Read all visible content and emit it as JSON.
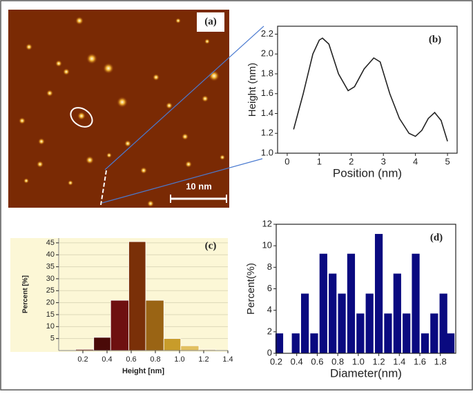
{
  "chart_data": [
    {
      "type": "image",
      "label": "(a)",
      "scale_bar": "10 nm"
    },
    {
      "type": "line",
      "label": "(b)",
      "xlabel": "Position (nm)",
      "ylabel": "Height (nm)",
      "x": [
        0.2,
        0.5,
        0.8,
        1.0,
        1.1,
        1.3,
        1.6,
        1.9,
        2.1,
        2.4,
        2.7,
        2.9,
        3.2,
        3.5,
        3.8,
        4.0,
        4.2,
        4.4,
        4.6,
        4.8,
        5.0
      ],
      "series": [
        {
          "color": "#222222",
          "values": [
            1.24,
            1.6,
            2.0,
            2.14,
            2.16,
            2.1,
            1.8,
            1.63,
            1.67,
            1.85,
            1.96,
            1.92,
            1.6,
            1.35,
            1.2,
            1.17,
            1.23,
            1.35,
            1.41,
            1.33,
            1.12
          ]
        }
      ],
      "xlim": [
        -0.3,
        5.3
      ],
      "xticks": [
        0,
        1,
        2,
        3,
        4,
        5
      ],
      "ylim": [
        1.0,
        2.28
      ],
      "yticks": [
        {
          "value": 1.0,
          "label": "1.0"
        },
        {
          "value": 1.2,
          "label": "1.2"
        },
        {
          "value": 1.4,
          "label": "1.4"
        },
        {
          "value": 1.6,
          "label": "1.6"
        },
        {
          "value": 1.8,
          "label": "1.8"
        },
        {
          "value": 2.0,
          "label": "2.0"
        },
        {
          "value": 2.2,
          "label": "2.2"
        }
      ]
    },
    {
      "type": "histogram",
      "label": "(c)",
      "xlabel": "Height [nm]",
      "ylabel": "Percent [%]",
      "bins": [
        0.14,
        0.29,
        0.43,
        0.58,
        0.72,
        0.87,
        1.01,
        1.16,
        1.3
      ],
      "values": [
        0.5,
        5.5,
        21,
        45.5,
        21,
        5,
        2,
        0.5
      ],
      "colors": [
        "#8a3a1a",
        "#4a0a08",
        "#6e1010",
        "#7a3008",
        "#9a6414",
        "#c89c2a",
        "#e2c060",
        "#ecd49a"
      ],
      "xlim": [
        0.0,
        1.4
      ],
      "xticks": [
        0.2,
        0.4,
        0.6,
        0.8,
        {
          "value": 1.0,
          "label": "1.0"
        },
        1.2,
        1.4
      ],
      "ylim": [
        0,
        47
      ],
      "yticks": [
        5,
        10,
        15,
        20,
        25,
        30,
        35,
        40,
        45
      ]
    },
    {
      "type": "bar",
      "label": "(d)",
      "xlabel": "Diameter(nm)",
      "ylabel": "Percent(%)",
      "color": "#0a0a80",
      "x": [
        0.23,
        0.39,
        0.48,
        0.57,
        0.66,
        0.75,
        0.84,
        0.93,
        1.02,
        1.11,
        1.2,
        1.29,
        1.38,
        1.47,
        1.56,
        1.65,
        1.74,
        1.83,
        1.9
      ],
      "values": [
        1.85,
        1.85,
        5.55,
        1.85,
        9.26,
        7.41,
        5.55,
        9.26,
        3.7,
        5.55,
        11.1,
        3.7,
        7.41,
        3.7,
        9.26,
        1.85,
        3.7,
        5.55,
        1.85
      ],
      "xlim": [
        0.2,
        1.95
      ],
      "xticks": [
        0.2,
        0.4,
        0.6,
        0.8,
        {
          "value": 1.0,
          "label": "1.0"
        },
        1.2,
        1.4,
        1.6,
        1.8
      ],
      "ylim": [
        0,
        12
      ],
      "yticks": [
        0,
        2,
        4,
        6,
        8,
        10,
        12
      ]
    }
  ]
}
